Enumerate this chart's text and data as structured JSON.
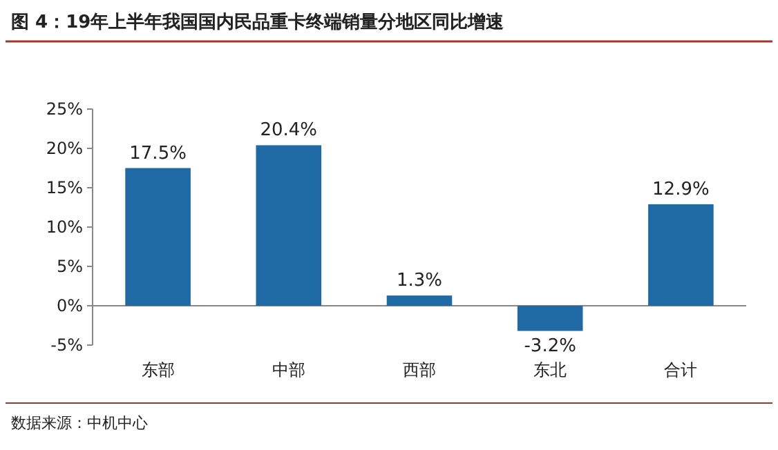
{
  "chart_data": {
    "type": "bar",
    "title": "图 4：19年上半年我国国内民品重卡终端销量分地区同比增速",
    "categories": [
      "东部",
      "中部",
      "西部",
      "东北",
      "合计"
    ],
    "values": [
      17.5,
      20.4,
      1.3,
      -3.2,
      12.9
    ],
    "value_labels": [
      "17.5%",
      "20.4%",
      "1.3%",
      "-3.2%",
      "12.9%"
    ],
    "color": "#1f6aa5",
    "ylim": [
      -5,
      25
    ],
    "yticks": [
      {
        "value": -5,
        "label": "-5%"
      },
      {
        "value": 0,
        "label": "0%"
      },
      {
        "value": 5,
        "label": "5%"
      },
      {
        "value": 10,
        "label": "10%"
      },
      {
        "value": 15,
        "label": "15%"
      },
      {
        "value": 20,
        "label": "20%"
      },
      {
        "value": 25,
        "label": "25%"
      }
    ],
    "annotations": [
      "数据来源：中机中心"
    ]
  }
}
